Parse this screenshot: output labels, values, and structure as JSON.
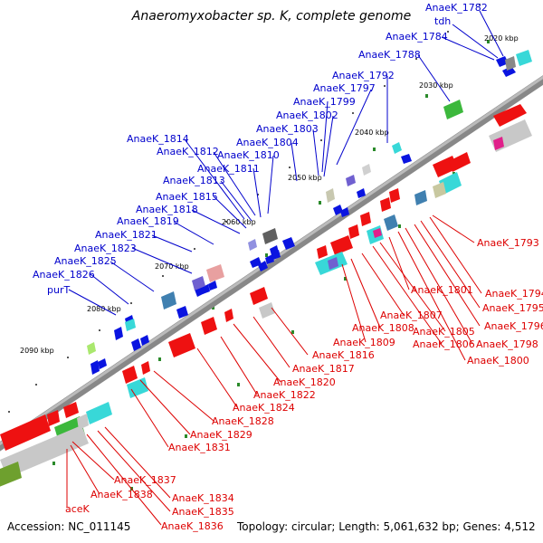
{
  "title": "Anaeromyxobacter sp. K, complete genome",
  "footer": {
    "accession": "Accession: NC_011145",
    "summary": "Topology: circular; Length: 5,061,632 bp; Genes: 4,512"
  },
  "scale_labels": [
    "2020 kbp",
    "2030 kbp",
    "2040 kbp",
    "2050 kbp",
    "2060 kbp",
    "2070 kbp",
    "2080 kbp",
    "2090 kbp"
  ],
  "blue_labels": [
    "AnaeK_1782",
    "tdh",
    "AnaeK_1784",
    "AnaeK_1788",
    "AnaeK_1792",
    "AnaeK_1797",
    "AnaeK_1799",
    "AnaeK_1802",
    "AnaeK_1803",
    "AnaeK_1804",
    "AnaeK_1814",
    "AnaeK_1810",
    "AnaeK_1812",
    "AnaeK_1811",
    "AnaeK_1813",
    "AnaeK_1815",
    "AnaeK_1818",
    "AnaeK_1819",
    "AnaeK_1821",
    "AnaeK_1823",
    "AnaeK_1825",
    "AnaeK_1826",
    "purT"
  ],
  "red_labels": [
    "AnaeK_1793",
    "AnaeK_1794",
    "AnaeK_1795",
    "AnaeK_1796",
    "AnaeK_1798",
    "AnaeK_1800",
    "AnaeK_1801",
    "AnaeK_1805",
    "AnaeK_1806",
    "AnaeK_1807",
    "AnaeK_1808",
    "AnaeK_1809",
    "AnaeK_1816",
    "AnaeK_1817",
    "AnaeK_1820",
    "AnaeK_1822",
    "AnaeK_1824",
    "AnaeK_1828",
    "AnaeK_1829",
    "AnaeK_1831",
    "AnaeK_1834",
    "AnaeK_1835",
    "AnaeK_1836",
    "AnaeK_1837",
    "AnaeK_1838",
    "aceK"
  ]
}
